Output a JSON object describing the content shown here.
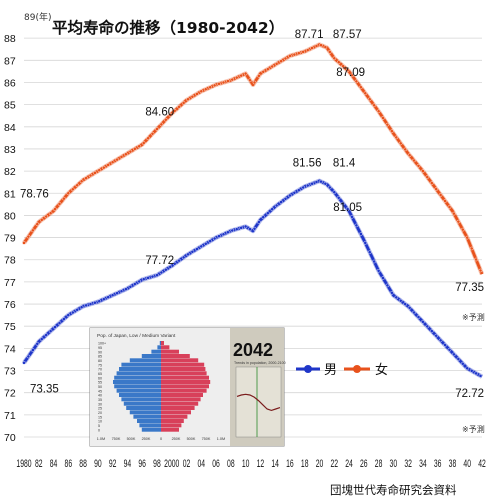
{
  "chart_data": {
    "type": "line",
    "title": "平均寿命の推移（1980-2042）",
    "ylabel": "89(年)",
    "ylim": [
      70,
      89
    ],
    "xlim": [
      1980,
      2042
    ],
    "yticks": [
      "70",
      "71",
      "72",
      "73",
      "74",
      "75",
      "76",
      "77",
      "78",
      "79",
      "80",
      "81",
      "82",
      "83",
      "84",
      "85",
      "86",
      "87",
      "88",
      "89"
    ],
    "xticks": [
      {
        "v": 1980,
        "t": "1980"
      },
      {
        "v": 1982,
        "t": "82"
      },
      {
        "v": 1984,
        "t": "84"
      },
      {
        "v": 1986,
        "t": "86"
      },
      {
        "v": 1988,
        "t": "88"
      },
      {
        "v": 1990,
        "t": "90"
      },
      {
        "v": 1992,
        "t": "92"
      },
      {
        "v": 1994,
        "t": "94"
      },
      {
        "v": 1996,
        "t": "96"
      },
      {
        "v": 1998,
        "t": "98"
      },
      {
        "v": 2000,
        "t": "2000"
      },
      {
        "v": 2002,
        "t": "02"
      },
      {
        "v": 2004,
        "t": "04"
      },
      {
        "v": 2006,
        "t": "06"
      },
      {
        "v": 2008,
        "t": "08"
      },
      {
        "v": 2010,
        "t": "10"
      },
      {
        "v": 2012,
        "t": "12"
      },
      {
        "v": 2014,
        "t": "14"
      },
      {
        "v": 2016,
        "t": "16"
      },
      {
        "v": 2018,
        "t": "18"
      },
      {
        "v": 2020,
        "t": "20"
      },
      {
        "v": 2022,
        "t": "22"
      },
      {
        "v": 2024,
        "t": "24"
      },
      {
        "v": 2026,
        "t": "26"
      },
      {
        "v": 2028,
        "t": "28"
      },
      {
        "v": 2030,
        "t": "30"
      },
      {
        "v": 2032,
        "t": "32"
      },
      {
        "v": 2034,
        "t": "34"
      },
      {
        "v": 2036,
        "t": "36"
      },
      {
        "v": 2038,
        "t": "38"
      },
      {
        "v": 2040,
        "t": "40"
      },
      {
        "v": 2042,
        "t": "42"
      }
    ],
    "grid": true,
    "legend_position": "right-middle",
    "series": [
      {
        "name": "女",
        "color": "#e8521c",
        "x": [
          1980,
          1982,
          1984,
          1986,
          1988,
          1990,
          1992,
          1994,
          1996,
          1998,
          2000,
          2002,
          2004,
          2006,
          2008,
          2010,
          2011,
          2012,
          2014,
          2016,
          2018,
          2020,
          2021,
          2022,
          2024,
          2026,
          2028,
          2030,
          2032,
          2034,
          2036,
          2038,
          2040,
          2042
        ],
        "y": [
          78.76,
          79.7,
          80.2,
          81.0,
          81.6,
          82.0,
          82.4,
          82.8,
          83.2,
          83.9,
          84.6,
          85.2,
          85.6,
          85.9,
          86.1,
          86.4,
          85.9,
          86.4,
          86.8,
          87.2,
          87.4,
          87.71,
          87.57,
          87.09,
          86.5,
          85.6,
          84.7,
          83.7,
          82.8,
          82.0,
          81.1,
          80.2,
          79.0,
          77.35
        ]
      },
      {
        "name": "男",
        "color": "#1f36c9",
        "x": [
          1980,
          1982,
          1984,
          1986,
          1988,
          1990,
          1992,
          1994,
          1996,
          1998,
          2000,
          2002,
          2004,
          2006,
          2008,
          2010,
          2011,
          2012,
          2014,
          2016,
          2018,
          2020,
          2021,
          2022,
          2024,
          2026,
          2028,
          2030,
          2032,
          2034,
          2036,
          2038,
          2040,
          2042
        ],
        "y": [
          73.35,
          74.3,
          74.9,
          75.5,
          75.9,
          76.1,
          76.4,
          76.7,
          77.1,
          77.3,
          77.72,
          78.2,
          78.6,
          79.0,
          79.3,
          79.5,
          79.3,
          79.8,
          80.4,
          80.9,
          81.3,
          81.56,
          81.4,
          81.05,
          80.2,
          78.9,
          77.5,
          76.4,
          75.9,
          75.2,
          74.5,
          73.8,
          73.1,
          72.72
        ]
      }
    ],
    "annotations": {
      "f_1980": "78.76",
      "f_2000": "84.60",
      "f_2020": "87.71",
      "f_2021": "87.57",
      "f_2022": "87.09",
      "f_2042": "77.35",
      "m_1980": "73.35",
      "m_2000": "77.72",
      "m_2020": "81.56",
      "m_2021": "81.4",
      "m_2022": "81.05",
      "m_2042": "72.72"
    },
    "forecast_note": "※予測",
    "source": "団塊世代寿命研究会資料",
    "inset": {
      "title": "Pop. of Japan, Low / Medium Variant",
      "year_label": "2042",
      "trend_title": "Trends in population, 2000-2100",
      "age_ticks": [
        "100+",
        "95",
        "90",
        "85",
        "80",
        "75",
        "70",
        "65",
        "60",
        "55",
        "50",
        "45",
        "40",
        "35",
        "30",
        "25",
        "20",
        "15",
        "10",
        "5",
        "0"
      ],
      "x_ticks": [
        "1.0M",
        "750K",
        "500K",
        "250K",
        "0",
        "250K",
        "500K",
        "750K",
        "1.0M"
      ],
      "male_color": "#3a78c8",
      "female_color": "#d8405a",
      "male": [
        0.02,
        0.06,
        0.16,
        0.32,
        0.52,
        0.66,
        0.7,
        0.74,
        0.78,
        0.8,
        0.78,
        0.74,
        0.7,
        0.66,
        0.62,
        0.58,
        0.52,
        0.46,
        0.4,
        0.36,
        0.32
      ],
      "female": [
        0.05,
        0.14,
        0.3,
        0.48,
        0.62,
        0.72,
        0.74,
        0.76,
        0.8,
        0.82,
        0.8,
        0.76,
        0.7,
        0.66,
        0.62,
        0.56,
        0.5,
        0.44,
        0.38,
        0.34,
        0.3
      ],
      "trend": [
        0.58,
        0.6,
        0.61,
        0.6,
        0.57,
        0.52,
        0.46,
        0.4,
        0.38,
        0.4,
        0.42
      ]
    }
  }
}
